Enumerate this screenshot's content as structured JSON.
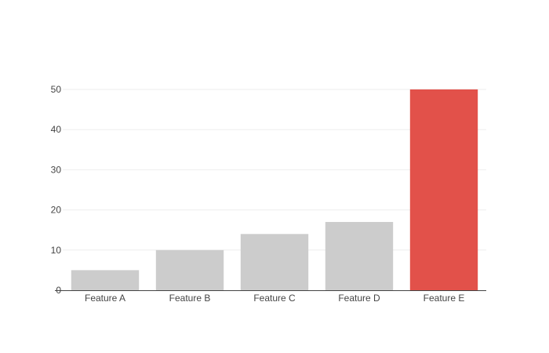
{
  "chart_data": {
    "type": "bar",
    "title": "",
    "xlabel": "",
    "ylabel": "",
    "categories": [
      "Feature A",
      "Feature B",
      "Feature C",
      "Feature D",
      "Feature E"
    ],
    "values": [
      5,
      10,
      14,
      17,
      50
    ],
    "ylim": [
      0,
      50
    ],
    "yticks": [
      0,
      10,
      20,
      30,
      40,
      50
    ],
    "grid": true,
    "legend": "none",
    "colors": {
      "default_bar": "#cccccc",
      "highlight_bar": "#e2514a",
      "gridline": "#eeeeee",
      "axis_line": "#444444",
      "tick_text": "#444444"
    },
    "highlight_index": 4
  }
}
